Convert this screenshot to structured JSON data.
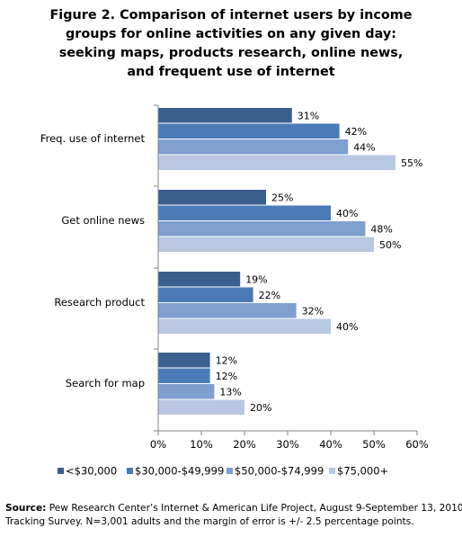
{
  "chart_data": {
    "type": "bar",
    "orientation": "horizontal",
    "title_lines": [
      "Figure 2. Comparison of internet users by income",
      "groups for online activities on any given day:",
      "seeking maps, products research, online news,",
      "and frequent use of internet"
    ],
    "categories": [
      "Freq. use of internet",
      "Get online news",
      "Research product",
      "Search for map"
    ],
    "series": [
      {
        "name": "<$30,000",
        "color": "#3a5f8f",
        "values": [
          31,
          25,
          19,
          12
        ]
      },
      {
        "name": "$30,000-$49,999",
        "color": "#4a7ab8",
        "values": [
          42,
          40,
          22,
          12
        ]
      },
      {
        "name": "$50,000-$74,999",
        "color": "#7f9fcf",
        "values": [
          44,
          48,
          32,
          13
        ]
      },
      {
        "name": "$75,000+",
        "color": "#b9c7e2",
        "values": [
          55,
          50,
          40,
          20
        ]
      }
    ],
    "value_suffix": "%",
    "xlim": [
      0,
      60
    ],
    "xticks": [
      "0%",
      "10%",
      "20%",
      "30%",
      "40%",
      "50%",
      "60%"
    ],
    "grid": false,
    "legend_position": "bottom"
  },
  "source": {
    "label": "Source:",
    "line1": " Pew Research Center’s Internet & American Life Project, August 9-September 13, 2010",
    "line2": "Tracking Survey. N=3,001 adults and the margin of error is +/- 2.5 percentage points."
  }
}
